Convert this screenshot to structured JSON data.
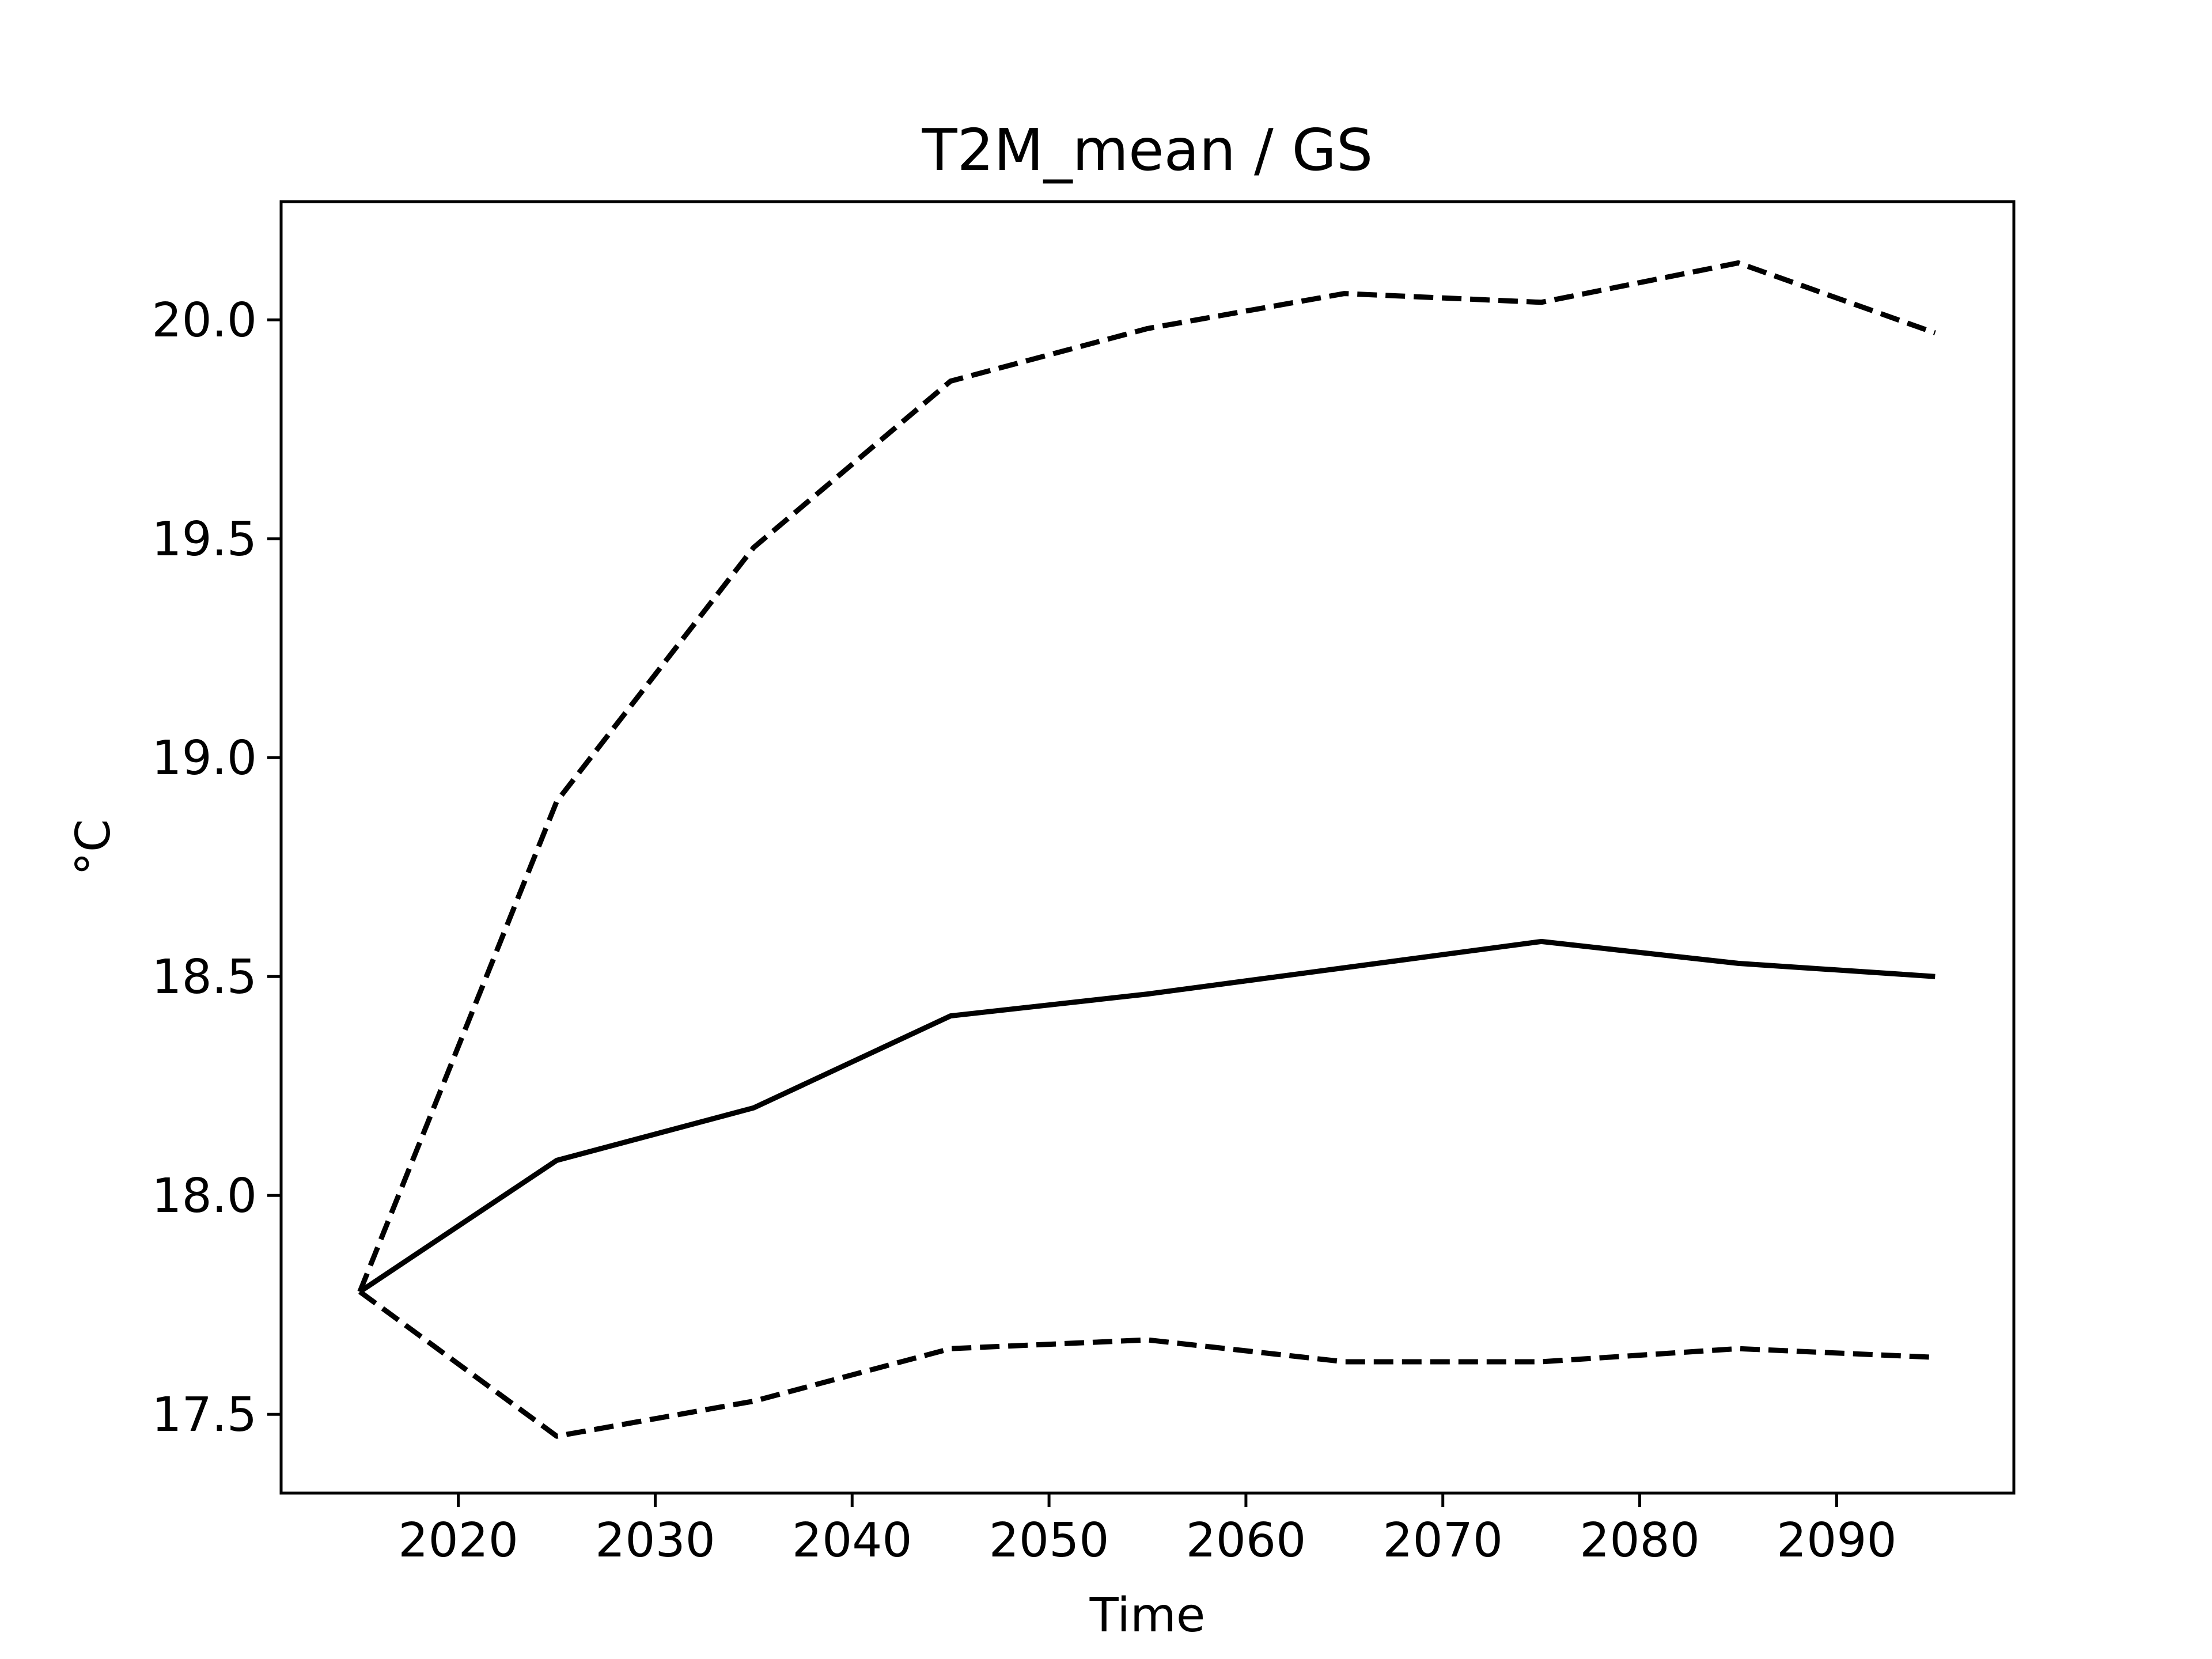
{
  "chart_data": {
    "type": "line",
    "title": "T2M_mean / GS",
    "xlabel": "Time",
    "ylabel": "°C",
    "xlim": [
      2011,
      2099
    ],
    "ylim": [
      17.32,
      20.27
    ],
    "xticks": [
      2020,
      2030,
      2040,
      2050,
      2060,
      2070,
      2080,
      2090
    ],
    "xtick_labels": [
      "2020",
      "2030",
      "2040",
      "2050",
      "2060",
      "2070",
      "2080",
      "2090"
    ],
    "yticks": [
      17.5,
      18.0,
      18.5,
      19.0,
      19.5,
      20.0
    ],
    "ytick_labels": [
      "17.5",
      "18.0",
      "18.5",
      "19.0",
      "19.5",
      "20.0"
    ],
    "grid": false,
    "legend": "none",
    "x": [
      2015,
      2025,
      2035,
      2045,
      2055,
      2065,
      2075,
      2085,
      2095
    ],
    "series": [
      {
        "style": "dashed",
        "color": "#000000",
        "values": [
          17.78,
          18.9,
          19.48,
          19.86,
          19.98,
          20.06,
          20.04,
          20.13,
          19.97
        ]
      },
      {
        "style": "solid",
        "color": "#000000",
        "values": [
          17.78,
          18.08,
          18.2,
          18.41,
          18.46,
          18.52,
          18.58,
          18.53,
          18.5
        ]
      },
      {
        "style": "dashed",
        "color": "#000000",
        "values": [
          17.78,
          17.45,
          17.53,
          17.65,
          17.67,
          17.62,
          17.62,
          17.65,
          17.63
        ]
      }
    ]
  }
}
